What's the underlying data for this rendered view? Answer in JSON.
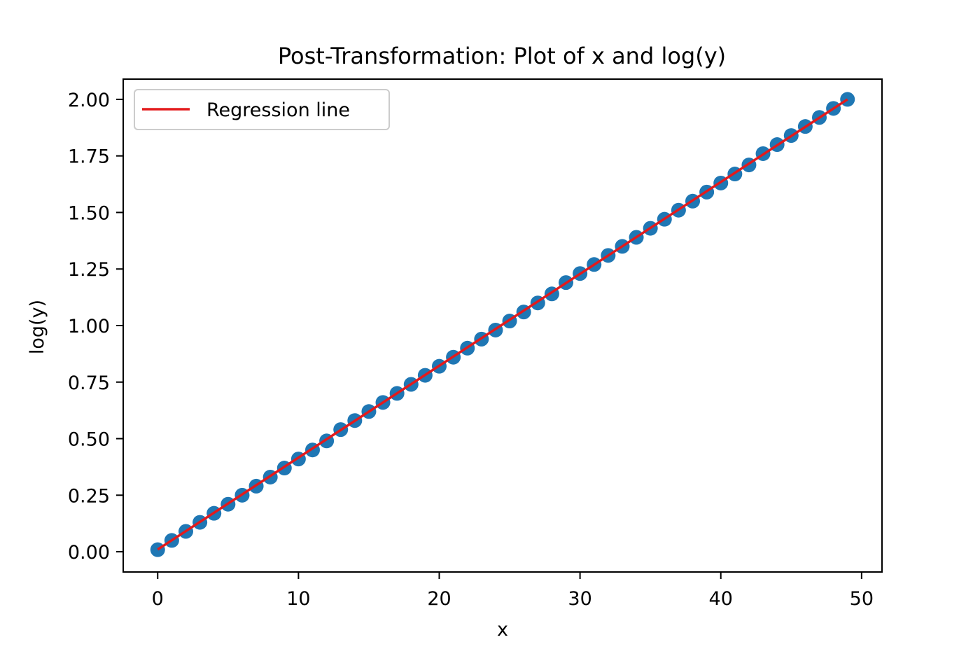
{
  "chart_data": {
    "type": "scatter",
    "title": "Post-Transformation: Plot of x and log(y)",
    "xlabel": "x",
    "ylabel": "log(y)",
    "xlim": [
      -2.45,
      51.45
    ],
    "ylim": [
      -0.0895,
      2.0895
    ],
    "xticks": [
      0,
      10,
      20,
      30,
      40,
      50
    ],
    "xtick_labels": [
      "0",
      "10",
      "20",
      "30",
      "40",
      "50"
    ],
    "yticks": [
      0,
      0.25,
      0.5,
      0.75,
      1,
      1.25,
      1.5,
      1.75,
      2
    ],
    "ytick_labels": [
      "0.00",
      "0.25",
      "0.50",
      "0.75",
      "1.00",
      "1.25",
      "1.50",
      "1.75",
      "2.00"
    ],
    "grid": false,
    "legend_position": "top-left",
    "series": [
      {
        "kind": "scatter",
        "color": "#1f77b4",
        "x": [
          0,
          1,
          2,
          3,
          4,
          5,
          6,
          7,
          8,
          9,
          10,
          11,
          12,
          13,
          14,
          15,
          16,
          17,
          18,
          19,
          20,
          21,
          22,
          23,
          24,
          25,
          26,
          27,
          28,
          29,
          30,
          31,
          32,
          33,
          34,
          35,
          36,
          37,
          38,
          39,
          40,
          41,
          42,
          43,
          44,
          45,
          46,
          47,
          48,
          49
        ],
        "y": [
          0.009,
          0.05,
          0.09,
          0.13,
          0.17,
          0.21,
          0.25,
          0.29,
          0.33,
          0.37,
          0.41,
          0.45,
          0.49,
          0.54,
          0.58,
          0.62,
          0.66,
          0.7,
          0.74,
          0.78,
          0.82,
          0.86,
          0.9,
          0.94,
          0.98,
          1.02,
          1.06,
          1.1,
          1.14,
          1.19,
          1.23,
          1.27,
          1.31,
          1.35,
          1.39,
          1.43,
          1.47,
          1.51,
          1.55,
          1.59,
          1.63,
          1.67,
          1.71,
          1.76,
          1.8,
          1.84,
          1.88,
          1.92,
          1.96,
          2.0
        ]
      },
      {
        "kind": "line",
        "name": "Regression line",
        "color": "#e31a1c",
        "x": [
          0,
          49
        ],
        "y": [
          0.01,
          2.0
        ]
      }
    ]
  }
}
